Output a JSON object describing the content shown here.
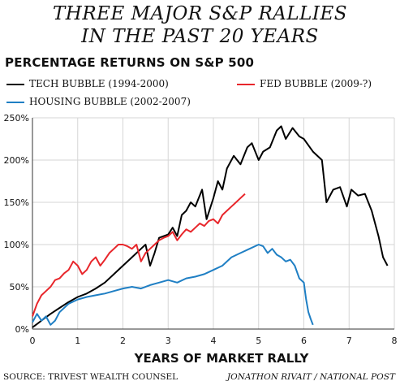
{
  "header": {
    "title_line1": "THREE MAJOR S&P RALLIES",
    "title_line2": "IN THE PAST 20 YEARS",
    "subtitle": "PERCENTAGE RETURNS ON S&P 500"
  },
  "footer": {
    "source": "SOURCE: TRIVEST WEALTH COUNSEL",
    "credit": "JONATHON RIVAIT / NATIONAL POST"
  },
  "chart_data": {
    "type": "line",
    "xlabel": "YEARS OF MARKET RALLY",
    "ylabel": "",
    "xlim": [
      0,
      8
    ],
    "ylim": [
      0,
      250
    ],
    "x_ticks": [
      "0",
      "1",
      "2",
      "3",
      "4",
      "5",
      "6",
      "7",
      "8"
    ],
    "y_ticks": [
      "0%",
      "50%",
      "100%",
      "150%",
      "200%",
      "250%"
    ],
    "grid": true,
    "series": [
      {
        "name": "TECH BUBBLE (1994-2000)",
        "color": "#000000",
        "x": [
          0,
          0.1,
          0.25,
          0.4,
          0.6,
          0.8,
          1.0,
          1.2,
          1.4,
          1.6,
          1.8,
          2.0,
          2.2,
          2.4,
          2.5,
          2.6,
          2.7,
          2.8,
          3.0,
          3.1,
          3.2,
          3.3,
          3.4,
          3.5,
          3.6,
          3.75,
          3.85,
          4.0,
          4.1,
          4.2,
          4.3,
          4.45,
          4.6,
          4.75,
          4.85,
          5.0,
          5.1,
          5.25,
          5.4,
          5.5,
          5.6,
          5.75,
          5.9,
          6.0,
          6.2,
          6.4,
          6.5,
          6.65,
          6.8,
          6.95,
          7.05,
          7.2,
          7.35,
          7.5,
          7.65,
          7.75,
          7.85
        ],
        "y": [
          2,
          6,
          12,
          18,
          25,
          32,
          38,
          42,
          48,
          55,
          65,
          75,
          85,
          95,
          100,
          75,
          90,
          108,
          112,
          120,
          110,
          135,
          140,
          150,
          145,
          165,
          130,
          155,
          175,
          165,
          190,
          205,
          195,
          215,
          220,
          200,
          210,
          215,
          235,
          240,
          225,
          238,
          228,
          225,
          210,
          200,
          150,
          165,
          168,
          145,
          165,
          158,
          160,
          140,
          110,
          85,
          75
        ]
      },
      {
        "name": "HOUSING BUBBLE (2002-2007)",
        "color": "#1f7fc4",
        "x": [
          0,
          0.1,
          0.2,
          0.3,
          0.4,
          0.5,
          0.6,
          0.8,
          1.0,
          1.2,
          1.4,
          1.6,
          1.8,
          2.0,
          2.2,
          2.4,
          2.6,
          2.8,
          3.0,
          3.2,
          3.4,
          3.6,
          3.8,
          4.0,
          4.2,
          4.4,
          4.6,
          4.8,
          5.0,
          5.1,
          5.2,
          5.3,
          5.4,
          5.5,
          5.6,
          5.7,
          5.8,
          5.9,
          6.0,
          6.05,
          6.1,
          6.15,
          6.2
        ],
        "y": [
          8,
          18,
          10,
          15,
          5,
          10,
          20,
          30,
          35,
          38,
          40,
          42,
          45,
          48,
          50,
          48,
          52,
          55,
          58,
          55,
          60,
          62,
          65,
          70,
          75,
          85,
          90,
          95,
          100,
          98,
          90,
          95,
          88,
          85,
          80,
          82,
          75,
          60,
          55,
          35,
          20,
          12,
          5
        ]
      },
      {
        "name": "FED BUBBLE (2009-?)",
        "color": "#e8262b",
        "x": [
          0,
          0.1,
          0.2,
          0.3,
          0.4,
          0.5,
          0.6,
          0.7,
          0.8,
          0.9,
          1.0,
          1.1,
          1.2,
          1.3,
          1.4,
          1.5,
          1.6,
          1.7,
          1.8,
          1.9,
          2.0,
          2.1,
          2.2,
          2.3,
          2.4,
          2.5,
          2.6,
          2.7,
          2.8,
          2.9,
          3.0,
          3.1,
          3.2,
          3.3,
          3.4,
          3.5,
          3.6,
          3.7,
          3.8,
          3.9,
          4.0,
          4.1,
          4.2,
          4.3,
          4.4,
          4.5,
          4.6,
          4.7
        ],
        "y": [
          15,
          30,
          40,
          45,
          50,
          58,
          60,
          66,
          70,
          80,
          75,
          65,
          70,
          80,
          85,
          75,
          82,
          90,
          95,
          100,
          100,
          98,
          95,
          100,
          80,
          90,
          95,
          100,
          105,
          108,
          110,
          115,
          105,
          112,
          118,
          115,
          120,
          125,
          122,
          128,
          130,
          125,
          135,
          140,
          145,
          150,
          155,
          160
        ]
      }
    ]
  }
}
